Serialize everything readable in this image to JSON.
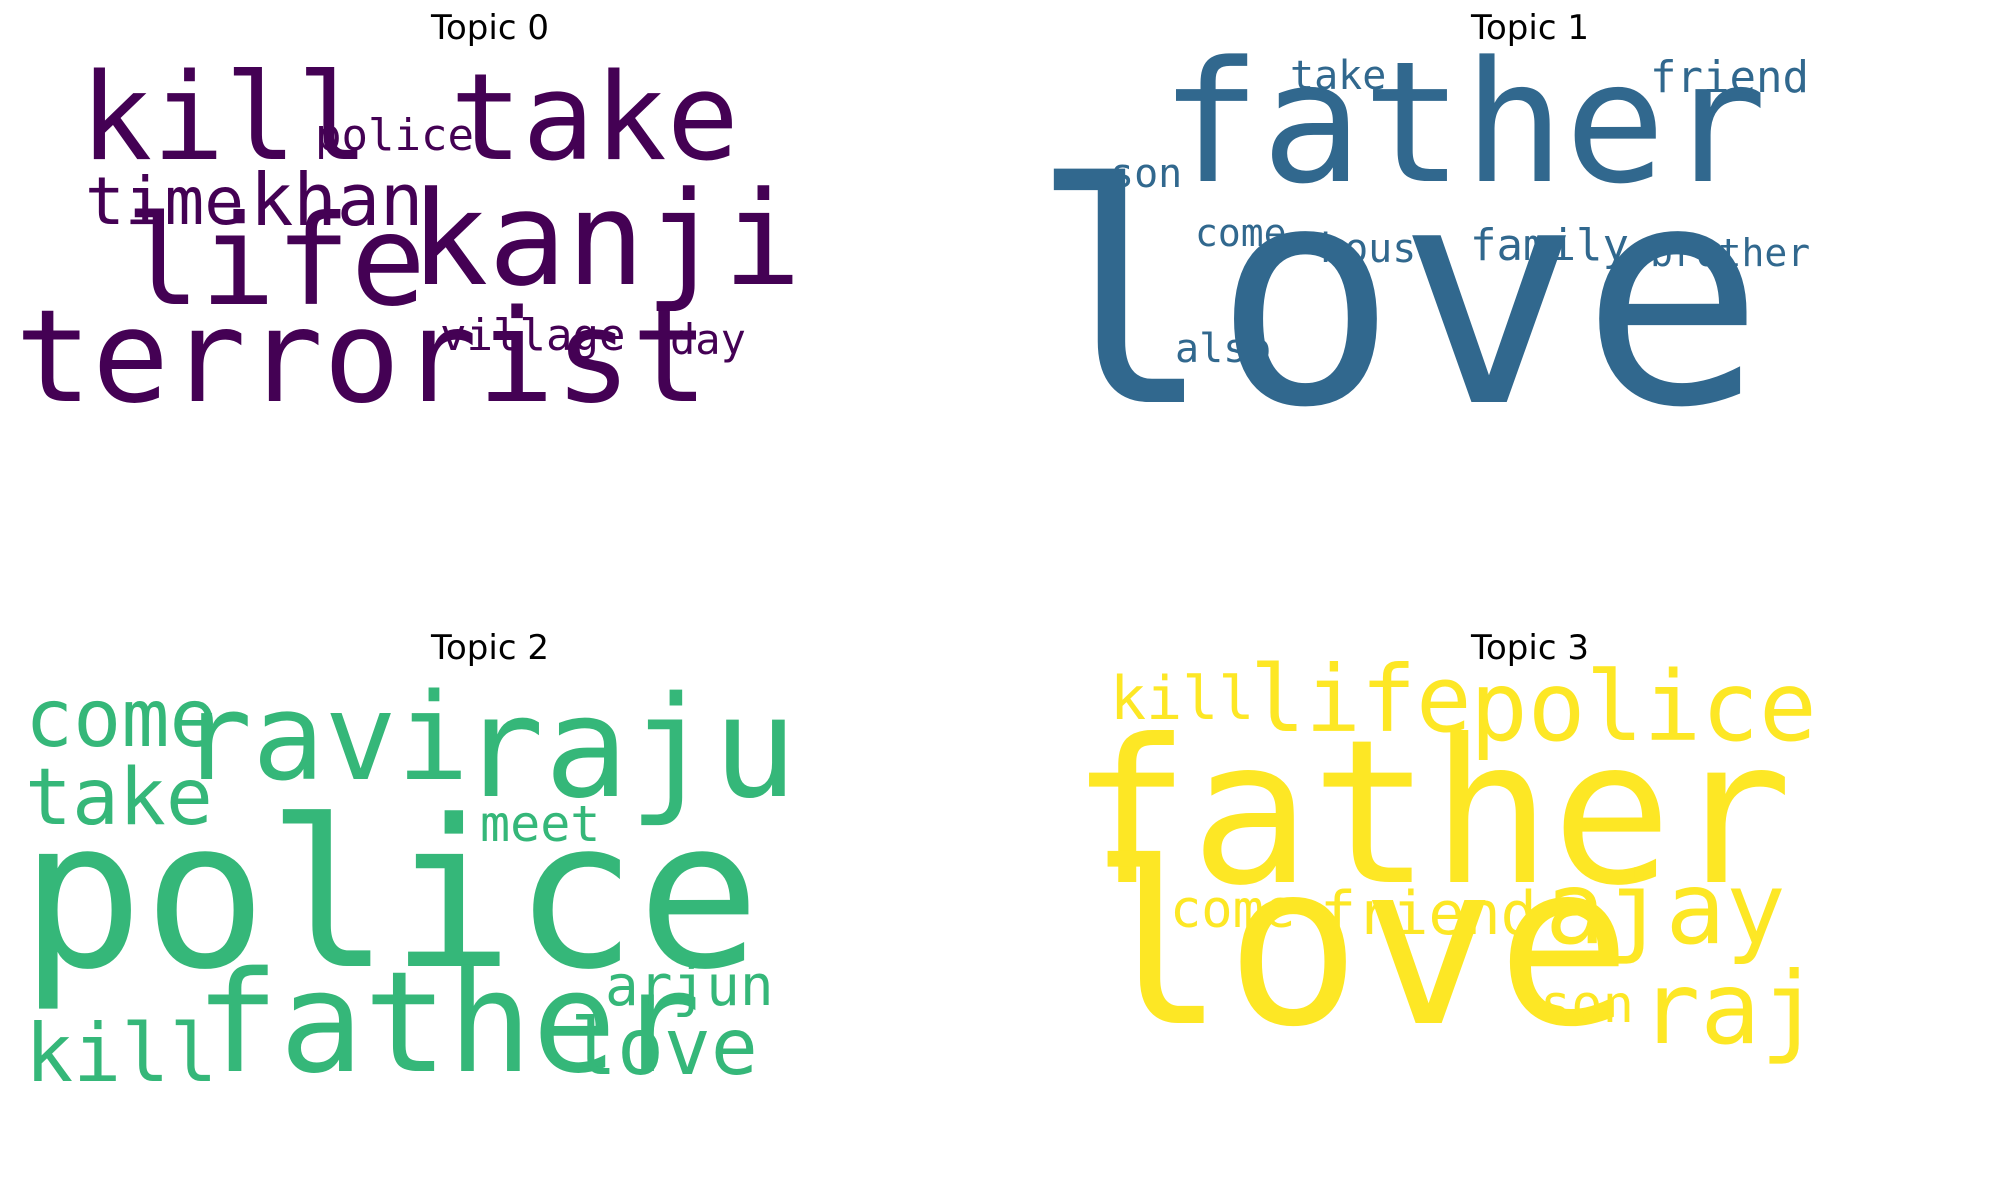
{
  "panels": [
    {
      "title": "Topic 0",
      "color": "#440154",
      "words": [
        "kill",
        "take",
        "police",
        "time",
        "khan",
        "kanji",
        "life",
        "village",
        "day",
        "terrorist"
      ]
    },
    {
      "title": "Topic 1",
      "color": "#31688e",
      "words": [
        "father",
        "take",
        "friend",
        "son",
        "come",
        "house",
        "family",
        "brother",
        "also",
        "love"
      ]
    },
    {
      "title": "Topic 2",
      "color": "#35b779",
      "words": [
        "come",
        "ravi",
        "raju",
        "take",
        "meet",
        "police",
        "father",
        "arjun",
        "kill",
        "love"
      ]
    },
    {
      "title": "Topic 3",
      "color": "#fde725",
      "words": [
        "kill",
        "life",
        "police",
        "father",
        "come",
        "friend",
        "ajay",
        "love",
        "son",
        "raj"
      ]
    }
  ]
}
